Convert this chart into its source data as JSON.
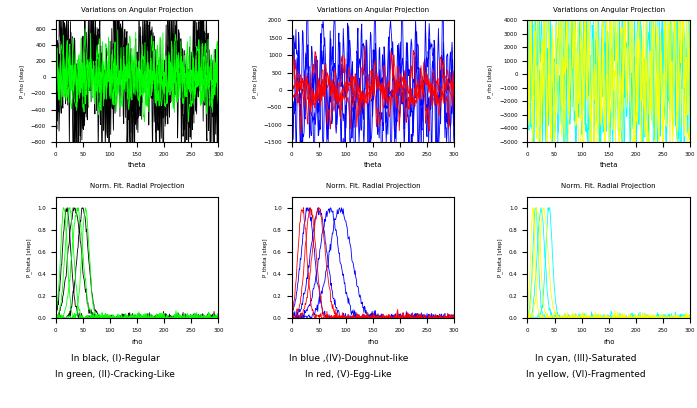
{
  "title_angular": "Variations on Angular Projection",
  "title_radial": "Norm. Fit. Radial Projection",
  "xlabel_angular": "theta",
  "xlabel_radial": "rho",
  "ylabel_angular": "P_rho [step]",
  "ylabel_radial": "P_theta [step]",
  "caption_left_line1": "In black, (I)-Regular",
  "caption_left_line2": "In green, (II)-Cracking-Like",
  "caption_mid_line1": "In blue ,(IV)-Doughnut-like",
  "caption_mid_line2": "In red, (V)-Egg-Like",
  "caption_right_line1": "In cyan, (III)-Saturated",
  "caption_right_line2": "In yellow, (VI)-Fragmented",
  "col1_ang_ylim": [
    -800,
    700
  ],
  "col2_ang_ylim": [
    -1500,
    2000
  ],
  "col3_ang_ylim": [
    -5000,
    4000
  ],
  "rad_ylim": [
    0,
    1.1
  ],
  "rad_xlim": [
    0,
    300
  ],
  "ang_xlim": [
    0,
    300
  ]
}
